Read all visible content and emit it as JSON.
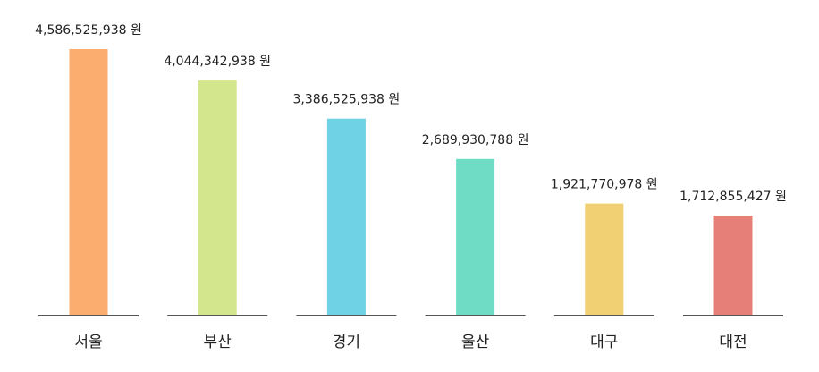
{
  "chart_data": {
    "type": "bar",
    "categories": [
      "서울",
      "부산",
      "경기",
      "울산",
      "대구",
      "대전"
    ],
    "values": [
      4586525938,
      4044342938,
      3386525938,
      2689930788,
      1921770978,
      1712855427
    ],
    "value_labels": [
      "4,586,525,938 원",
      "4,044,342,938 원",
      "3,386,525,938 원",
      "2,689,930,788 원",
      "1,921,770,978 원",
      "1,712,855,427 원"
    ],
    "colors": [
      "#fbad6f",
      "#d3e58d",
      "#6fd2e5",
      "#6fdcc6",
      "#f0d072",
      "#e57f77"
    ],
    "ylim": [
      0,
      5000000000
    ],
    "grid": false,
    "legend": false
  }
}
